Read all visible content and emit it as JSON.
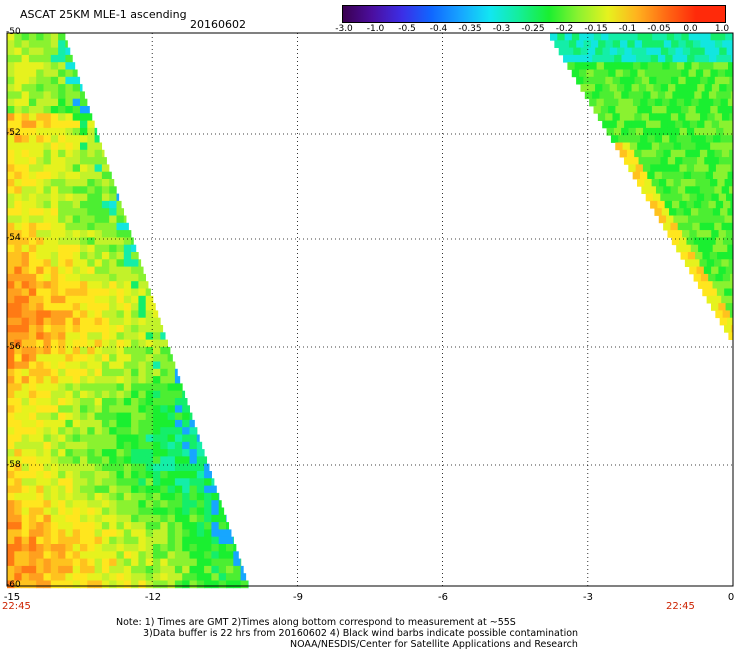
{
  "header": {
    "title": "ASCAT 25KM MLE-1 ascending",
    "date": "20160602"
  },
  "colorbar": {
    "labels": [
      "-3.0",
      "-1.0",
      "-0.5",
      "-0.4",
      "-0.35",
      "-0.3",
      "-0.25",
      "-0.2",
      "-0.15",
      "-0.1",
      "-0.05",
      "0.0",
      "1.0"
    ],
    "colors": [
      "#3a0050",
      "#4b0e9e",
      "#3c2ee6",
      "#1066ff",
      "#17a6ff",
      "#12e6f2",
      "#14ee9a",
      "#1aef30",
      "#8af230",
      "#e6f21e",
      "#ffb21e",
      "#ff6a14",
      "#ff2a0a"
    ]
  },
  "map": {
    "lat_labels": [
      "-50",
      "-52",
      "-54",
      "-56",
      "-58",
      "-60"
    ],
    "lon_labels": [
      "-15",
      "-12",
      "-9",
      "-6",
      "-3",
      "0"
    ],
    "lat_range": [
      -60,
      -50
    ],
    "lon_range": [
      -15,
      0
    ],
    "times": {
      "left": "22:45",
      "right": "22:45"
    }
  },
  "notes": {
    "line1": "Note: 1) Times are GMT 2)Times along bottom correspond to measurement at ~55S",
    "line2": "3)Data buffer is 22 hrs from 20160602 4) Black wind barbs indicate possible contamination",
    "line3": "NOAA/NESDIS/Center for Satellite Applications and Research"
  }
}
